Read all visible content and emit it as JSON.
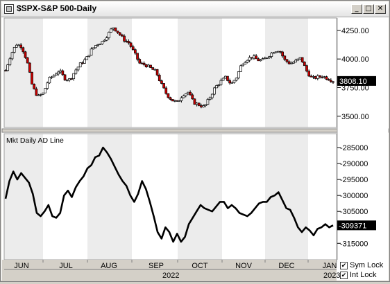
{
  "window": {
    "title": "$SPX-S&P 500-Daily",
    "minimize_glyph": "_",
    "maximize_glyph": "□",
    "close_glyph": "✕"
  },
  "price_panel": {
    "current_value": "3808.10",
    "y_ticks": [
      "4250.00",
      "4000.00",
      "3750.00",
      "3500.00"
    ],
    "y_tick_values": [
      4250,
      4000,
      3750,
      3500
    ],
    "ylim": [
      3420,
      4340
    ]
  },
  "ad_panel": {
    "label": "Mkt Daily AD Line",
    "current_value": "-309371",
    "y_ticks": [
      "-285000",
      "-290000",
      "-295000",
      "-300000",
      "-305000",
      "-310000",
      "-315000"
    ],
    "y_tick_values": [
      -285000,
      -290000,
      -295000,
      -300000,
      -305000,
      -310000,
      -315000
    ],
    "ylim": [
      -319500,
      -281300
    ]
  },
  "x_axis": {
    "months": [
      "JUN",
      "JUL",
      "AUG",
      "SEP",
      "OCT",
      "NOV",
      "DEC",
      "JAN"
    ],
    "years": [
      "2022",
      "2023"
    ]
  },
  "controls": {
    "sym_lock": "Sym Lock",
    "int_lock": "Int Lock",
    "sym_checked": "✔",
    "int_checked": "✔"
  },
  "colors": {
    "up_candle": "#ffffff",
    "down_candle": "#cc0000",
    "candle_outline": "#000000",
    "ad_line": "#000000",
    "value_box": "#000000",
    "shade_light": "#ececec"
  },
  "chart_data": [
    {
      "type": "candlestick",
      "title": "$SPX-S&P 500-Daily",
      "x_categories": [
        "JUN",
        "JUL",
        "AUG",
        "SEP",
        "OCT",
        "NOV",
        "DEC",
        "JAN"
      ],
      "close_series_approx": [
        3900,
        4040,
        4130,
        4110,
        3980,
        3760,
        3670,
        3700,
        3820,
        3860,
        3900,
        3830,
        3820,
        3900,
        3960,
        4000,
        4080,
        4130,
        4150,
        4210,
        4280,
        4230,
        4170,
        4140,
        4050,
        3960,
        3950,
        3920,
        3890,
        3780,
        3690,
        3640,
        3620,
        3690,
        3710,
        3620,
        3600,
        3580,
        3660,
        3750,
        3800,
        3840,
        3780,
        3840,
        3960,
        4000,
        4020,
        3990,
        3990,
        4030,
        4070,
        4080,
        3990,
        3960,
        3980,
        4010,
        3900,
        3830,
        3840,
        3850,
        3830,
        3808.1
      ],
      "last_value": 3808.1,
      "ylim": [
        3420,
        4340
      ]
    },
    {
      "type": "line",
      "title": "Mkt Daily AD Line",
      "values": [
        -301000,
        -295500,
        -292500,
        -295000,
        -293000,
        -294500,
        -296000,
        -299500,
        -305500,
        -306500,
        -305000,
        -303000,
        -306500,
        -307000,
        -305500,
        -300000,
        -298500,
        -300500,
        -297500,
        -295500,
        -294000,
        -291500,
        -290500,
        -288000,
        -287500,
        -285000,
        -286500,
        -288500,
        -291000,
        -293500,
        -295500,
        -297000,
        -300000,
        -302000,
        -299500,
        -295500,
        -298000,
        -302000,
        -306500,
        -311500,
        -313500,
        -310000,
        -311500,
        -314500,
        -312000,
        -314500,
        -313000,
        -309000,
        -307000,
        -305000,
        -303000,
        -304000,
        -304500,
        -305000,
        -303500,
        -302000,
        -302000,
        -304000,
        -303000,
        -304000,
        -305500,
        -306000,
        -306500,
        -305500,
        -304000,
        -302500,
        -302000,
        -302000,
        -300500,
        -300000,
        -299000,
        -301500,
        -304000,
        -304500,
        -307000,
        -310000,
        -311500,
        -310000,
        -311000,
        -312500,
        -310500,
        -310000,
        -309000,
        -310000,
        -309371
      ],
      "last_value": -309371,
      "ylim": [
        -319500,
        -281300
      ]
    }
  ]
}
